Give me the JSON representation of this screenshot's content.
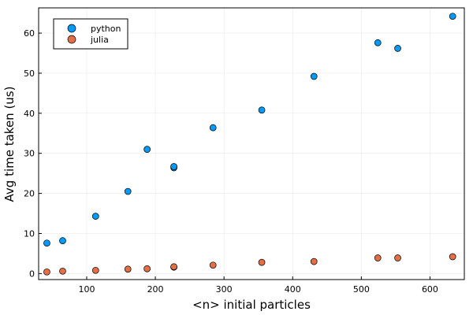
{
  "chart_data": {
    "type": "scatter",
    "xlabel": "<n> initial particles",
    "ylabel": "Avg time taken (us)",
    "xlim": [
      30,
      650
    ],
    "ylim": [
      -1.5,
      66.3
    ],
    "xticks": [
      100,
      200,
      300,
      400,
      500,
      600
    ],
    "yticks": [
      0,
      10,
      20,
      30,
      40,
      50,
      60
    ],
    "grid": true,
    "legend_position": "top-left",
    "series": [
      {
        "name": "python",
        "color": "#009af9",
        "x": [
          42,
          65,
          113,
          160,
          188,
          227,
          227,
          284,
          355,
          431,
          524,
          553,
          633
        ],
        "y": [
          7.6,
          8.2,
          14.3,
          20.5,
          31.0,
          26.4,
          26.7,
          36.4,
          40.8,
          49.2,
          57.6,
          56.2,
          64.2
        ]
      },
      {
        "name": "julia",
        "color": "#e26f46",
        "x": [
          42,
          65,
          113,
          160,
          188,
          227,
          227,
          284,
          355,
          431,
          524,
          553,
          633
        ],
        "y": [
          0.4,
          0.6,
          0.8,
          1.1,
          1.2,
          1.6,
          1.7,
          2.1,
          2.8,
          3.0,
          3.9,
          3.9,
          4.2
        ]
      }
    ]
  }
}
